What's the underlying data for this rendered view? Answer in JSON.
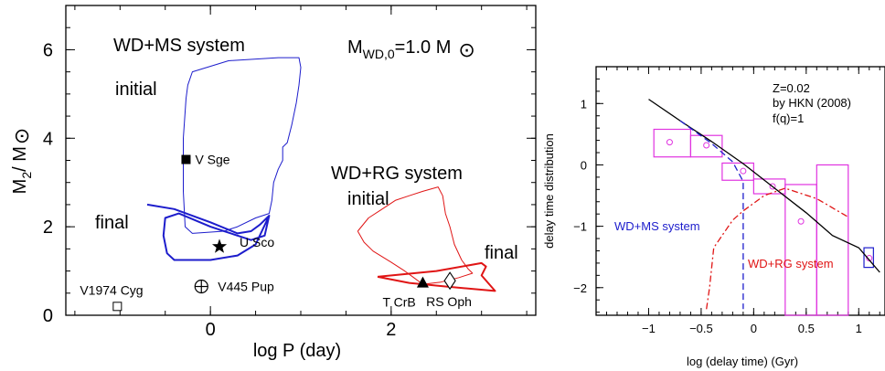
{
  "chart_data": [
    {
      "type": "scatter",
      "title": "",
      "xlabel": "log P (day)",
      "ylabel": "M2/M⊙",
      "ylabel_main": "M",
      "ylabel_sub": "2",
      "ylabel_rest": "/ M",
      "xlim": [
        -1.6,
        3.6
      ],
      "ylim": [
        0,
        7
      ],
      "xticks": [
        0,
        2
      ],
      "yticks": [
        0,
        2,
        4,
        6
      ],
      "annotations": {
        "top_right_main": "M",
        "top_right_sub": "WD,0",
        "top_right_rest": "=1.0 M",
        "top_right_sun": "⊙",
        "wdms_label": "WD+MS system",
        "wdms_initial": "initial",
        "wdms_final": "final",
        "wdrg_label": "WD+RG system",
        "wdrg_initial": "initial",
        "wdrg_final": "final"
      },
      "series": [
        {
          "name": "WD+MS initial",
          "color": "#1d1dcc",
          "points": [
            [
              -0.25,
              5.2
            ],
            [
              -0.2,
              5.5
            ],
            [
              0.2,
              5.75
            ],
            [
              0.75,
              5.82
            ],
            [
              0.98,
              5.82
            ],
            [
              1.0,
              5.6
            ],
            [
              0.98,
              5.2
            ],
            [
              0.95,
              4.8
            ],
            [
              0.9,
              4.3
            ],
            [
              0.85,
              3.9
            ],
            [
              0.8,
              3.8
            ],
            [
              0.8,
              3.5
            ],
            [
              0.75,
              3.3
            ],
            [
              0.7,
              3.0
            ],
            [
              0.68,
              2.6
            ],
            [
              0.65,
              2.3
            ],
            [
              0.5,
              2.2
            ],
            [
              0.3,
              2.0
            ],
            [
              0.15,
              1.9
            ],
            [
              -0.2,
              1.85
            ],
            [
              -0.28,
              2.0
            ],
            [
              -0.3,
              2.8
            ],
            [
              -0.3,
              4.0
            ],
            [
              -0.27,
              4.9
            ],
            [
              -0.25,
              5.2
            ]
          ]
        },
        {
          "name": "WD+MS final",
          "color": "#1d1dcc",
          "points": [
            [
              -0.7,
              2.5
            ],
            [
              -0.4,
              2.4
            ],
            [
              0.0,
              2.1
            ],
            [
              0.3,
              1.85
            ],
            [
              0.45,
              1.9
            ],
            [
              0.55,
              2.05
            ],
            [
              0.65,
              2.25
            ],
            [
              0.5,
              1.6
            ],
            [
              0.3,
              1.35
            ],
            [
              0.0,
              1.25
            ],
            [
              -0.4,
              1.25
            ],
            [
              -0.48,
              1.4
            ],
            [
              -0.52,
              1.8
            ],
            [
              -0.5,
              2.2
            ],
            [
              -0.35,
              2.3
            ],
            [
              0.0,
              2.0
            ],
            [
              0.45,
              1.7
            ],
            [
              0.6,
              1.8
            ],
            [
              0.65,
              2.25
            ]
          ]
        },
        {
          "name": "WD+RG initial",
          "color": "#e01515",
          "points": [
            [
              1.63,
              1.9
            ],
            [
              1.75,
              2.2
            ],
            [
              1.9,
              2.4
            ],
            [
              2.05,
              2.6
            ],
            [
              2.2,
              2.7
            ],
            [
              2.35,
              2.8
            ],
            [
              2.52,
              2.9
            ],
            [
              2.57,
              2.7
            ],
            [
              2.6,
              2.3
            ],
            [
              2.65,
              2.0
            ],
            [
              2.7,
              1.6
            ],
            [
              2.78,
              1.25
            ],
            [
              2.85,
              1.05
            ],
            [
              2.9,
              0.95
            ],
            [
              2.75,
              0.85
            ],
            [
              2.55,
              0.75
            ],
            [
              2.35,
              0.7
            ],
            [
              2.25,
              0.85
            ],
            [
              2.15,
              1.0
            ],
            [
              2.0,
              1.2
            ],
            [
              1.8,
              1.45
            ],
            [
              1.7,
              1.65
            ],
            [
              1.63,
              1.9
            ]
          ]
        },
        {
          "name": "WD+RG final",
          "color": "#e01515",
          "points": [
            [
              1.85,
              0.87
            ],
            [
              2.5,
              1.0
            ],
            [
              3.0,
              1.18
            ],
            [
              3.05,
              1.1
            ],
            [
              3.0,
              0.9
            ],
            [
              3.15,
              0.55
            ],
            [
              2.6,
              0.65
            ],
            [
              2.2,
              0.73
            ],
            [
              1.85,
              0.87
            ]
          ]
        }
      ],
      "objects": [
        {
          "name": "V Sge",
          "x": -0.27,
          "y": 3.52,
          "marker": "filled-square"
        },
        {
          "name": "U Sco",
          "x": 0.1,
          "y": 1.55,
          "marker": "filled-star"
        },
        {
          "name": "V445 Pup",
          "x": -0.1,
          "y": 0.65,
          "marker": "circle-plus"
        },
        {
          "name": "V1974 Cyg",
          "x": -1.03,
          "y": 0.2,
          "marker": "open-square"
        },
        {
          "name": "T CrB",
          "x": 2.35,
          "y": 0.73,
          "marker": "filled-triangle"
        },
        {
          "name": "RS Oph",
          "x": 2.65,
          "y": 0.78,
          "marker": "open-diamond"
        }
      ]
    },
    {
      "type": "line",
      "title": "",
      "xlabel": "log (delay time) (Gyr)",
      "ylabel": "delay time distribution",
      "xlim": [
        -1.5,
        1.25
      ],
      "ylim": [
        -2.45,
        1.6
      ],
      "xticks": [
        -1,
        -0.5,
        0,
        0.5,
        1
      ],
      "xtick_labels": [
        "−1",
        "−0.5",
        "0",
        "0.5",
        "1"
      ],
      "yticks": [
        -2,
        -1,
        0,
        1
      ],
      "ytick_labels": [
        "−2",
        "−1",
        "0",
        "1"
      ],
      "annotations": {
        "z_label": "Z=0.02",
        "ref_label": "by HKN (2008)",
        "fq_label": "f(q)=1",
        "wdms_label": "WD+MS system",
        "wdrg_label": "WD+RG system"
      },
      "series": [
        {
          "name": "Total",
          "style": "solid",
          "color": "#000000",
          "x": [
            -1.0,
            -0.7,
            -0.4,
            -0.1,
            0.2,
            0.5,
            0.75,
            1.0,
            1.1,
            1.2
          ],
          "y": [
            1.07,
            0.72,
            0.38,
            0.02,
            -0.38,
            -0.78,
            -1.15,
            -1.35,
            -1.55,
            -1.75
          ]
        },
        {
          "name": "WD+MS",
          "style": "dashed",
          "color": "#1d1dcc",
          "x": [
            -0.7,
            -0.4,
            -0.2,
            -0.1,
            -0.1
          ],
          "y": [
            0.72,
            0.35,
            0.05,
            -0.27,
            -2.35
          ]
        },
        {
          "name": "WD+RG",
          "style": "dash-dot",
          "color": "#e01515",
          "x": [
            -0.45,
            -0.42,
            -0.38,
            -0.2,
            -0.1,
            0.1,
            0.3,
            0.6,
            0.9
          ],
          "y": [
            -2.35,
            -2.0,
            -1.35,
            -0.9,
            -0.75,
            -0.5,
            -0.38,
            -0.55,
            -0.85
          ]
        }
      ],
      "histogram": [
        {
          "x0": -0.95,
          "x1": -0.6,
          "y0": 0.13,
          "y1": 0.58,
          "cx": -0.8,
          "cy": 0.37
        },
        {
          "x0": -0.6,
          "x1": -0.3,
          "y0": 0.13,
          "y1": 0.48,
          "cx": -0.45,
          "cy": 0.32
        },
        {
          "x0": -0.3,
          "x1": 0.0,
          "y0": -0.25,
          "y1": 0.03,
          "cx": -0.1,
          "cy": -0.1
        },
        {
          "x0": 0.0,
          "x1": 0.3,
          "y0": -0.47,
          "y1": -0.23,
          "cx": 0.18,
          "cy": -0.35
        },
        {
          "x0": 0.3,
          "x1": 0.6,
          "y0": -2.45,
          "y1": -0.32,
          "cx": 0.45,
          "cy": -0.92
        },
        {
          "x0": 0.6,
          "x1": 0.9,
          "y0": -2.45,
          "y1": -0.0,
          "cx": null,
          "cy": null
        }
      ],
      "blue_box": {
        "x0": 1.05,
        "x1": 1.14,
        "y0": -1.67,
        "y1": -1.35,
        "cx": 1.1,
        "cy": -1.52
      }
    }
  ]
}
